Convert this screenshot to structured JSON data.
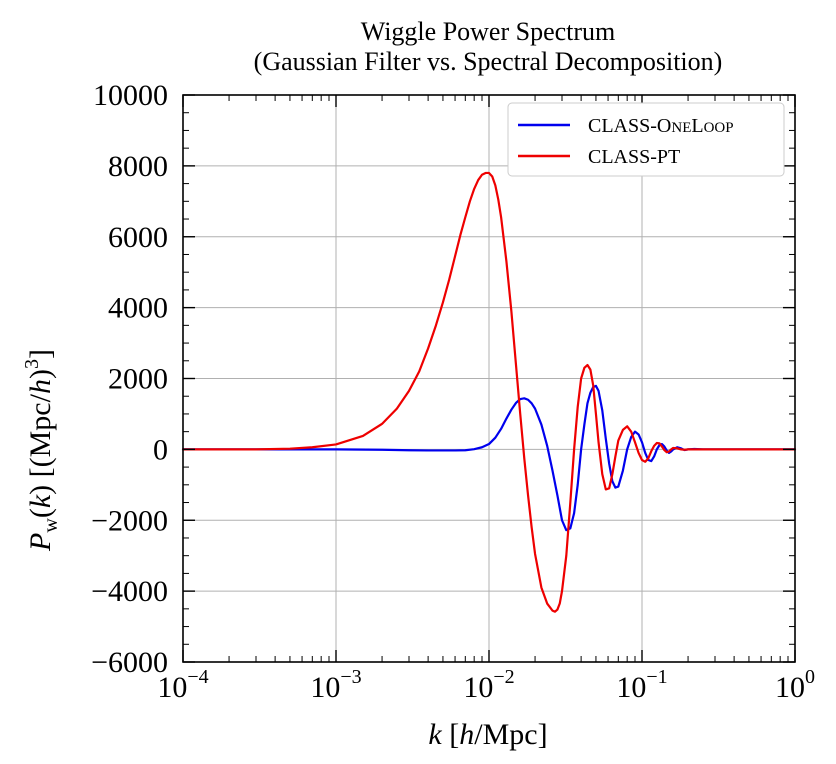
{
  "chart_data": {
    "type": "line",
    "title": [
      "Wiggle Power Spectrum",
      "(Gaussian Filter vs. Spectral Decomposition)"
    ],
    "xlabel": "k [h/Mpc]",
    "ylabel": "P_w(k) [(Mpc/h)^3]",
    "xscale": "log",
    "xlim": [
      0.0001,
      1
    ],
    "ylim": [
      -6000,
      10000
    ],
    "x_tick_labels": [
      {
        "value": 0.0001,
        "base": "10",
        "exp": "−4"
      },
      {
        "value": 0.001,
        "base": "10",
        "exp": "−3"
      },
      {
        "value": 0.01,
        "base": "10",
        "exp": "−2"
      },
      {
        "value": 0.1,
        "base": "10",
        "exp": "−1"
      },
      {
        "value": 1,
        "base": "10",
        "exp": "0"
      }
    ],
    "y_ticks": [
      -6000,
      -4000,
      -2000,
      0,
      2000,
      4000,
      6000,
      8000,
      10000
    ],
    "y_tick_labels": [
      "−6000",
      "−4000",
      "−2000",
      "0",
      "2000",
      "4000",
      "6000",
      "8000",
      "10000"
    ],
    "grid": true,
    "legend_position": "top-right",
    "series": [
      {
        "name": "CLASS-OneLoop",
        "legend_parts": [
          "CLASS-O",
          "NE",
          "L",
          "OOP"
        ],
        "color": "#0000ee",
        "x": [
          0.0001,
          0.001,
          0.002,
          0.003,
          0.004,
          0.005,
          0.006,
          0.007,
          0.008,
          0.009,
          0.01,
          0.011,
          0.012,
          0.013,
          0.014,
          0.015,
          0.016,
          0.017,
          0.018,
          0.019,
          0.02,
          0.022,
          0.024,
          0.026,
          0.028,
          0.03,
          0.032,
          0.034,
          0.036,
          0.038,
          0.04,
          0.042,
          0.044,
          0.046,
          0.048,
          0.05,
          0.052,
          0.055,
          0.058,
          0.061,
          0.064,
          0.067,
          0.07,
          0.075,
          0.08,
          0.085,
          0.09,
          0.095,
          0.1,
          0.105,
          0.11,
          0.115,
          0.12,
          0.125,
          0.13,
          0.135,
          0.14,
          0.145,
          0.15,
          0.155,
          0.16,
          0.17,
          0.18,
          0.19,
          0.2,
          0.22,
          0.25,
          0.3,
          0.4,
          0.6,
          1.0
        ],
        "y": [
          0,
          0,
          -10,
          -25,
          -30,
          -30,
          -30,
          -25,
          5,
          60,
          150,
          330,
          580,
          870,
          1120,
          1310,
          1420,
          1440,
          1400,
          1300,
          1150,
          700,
          100,
          -600,
          -1300,
          -2000,
          -2280,
          -2230,
          -1800,
          -1000,
          0,
          700,
          1300,
          1600,
          1760,
          1790,
          1650,
          1100,
          300,
          -400,
          -900,
          -1080,
          -1050,
          -600,
          0,
          350,
          500,
          420,
          200,
          -100,
          -300,
          -330,
          -200,
          0,
          120,
          150,
          80,
          -30,
          -100,
          -60,
          0,
          60,
          30,
          -20,
          0,
          10,
          0,
          0,
          0,
          0,
          0
        ]
      },
      {
        "name": "CLASS-PT",
        "legend_parts": [
          "CLASS-PT"
        ],
        "color": "#ee0000",
        "x": [
          0.0001,
          0.0003,
          0.0005,
          0.0007,
          0.001,
          0.0015,
          0.002,
          0.0025,
          0.003,
          0.0035,
          0.004,
          0.0045,
          0.005,
          0.0055,
          0.006,
          0.0065,
          0.007,
          0.0075,
          0.008,
          0.0085,
          0.009,
          0.0095,
          0.01,
          0.0105,
          0.011,
          0.0115,
          0.012,
          0.013,
          0.014,
          0.015,
          0.016,
          0.017,
          0.018,
          0.019,
          0.02,
          0.022,
          0.024,
          0.026,
          0.027,
          0.028,
          0.029,
          0.03,
          0.032,
          0.034,
          0.036,
          0.038,
          0.04,
          0.042,
          0.044,
          0.046,
          0.048,
          0.05,
          0.052,
          0.055,
          0.058,
          0.061,
          0.064,
          0.067,
          0.07,
          0.075,
          0.08,
          0.085,
          0.09,
          0.095,
          0.1,
          0.105,
          0.11,
          0.115,
          0.12,
          0.125,
          0.13,
          0.135,
          0.14,
          0.145,
          0.15,
          0.155,
          0.16,
          0.17,
          0.18,
          0.19,
          0.2,
          0.22,
          0.25,
          0.3,
          0.4,
          0.6,
          1.0
        ],
        "y": [
          0,
          0,
          20,
          60,
          140,
          380,
          720,
          1150,
          1650,
          2200,
          2850,
          3500,
          4150,
          4800,
          5450,
          6050,
          6550,
          7000,
          7350,
          7600,
          7750,
          7800,
          7800,
          7700,
          7450,
          7050,
          6550,
          5300,
          3900,
          2400,
          1000,
          -250,
          -1300,
          -2200,
          -2950,
          -3900,
          -4350,
          -4550,
          -4580,
          -4520,
          -4350,
          -4000,
          -3000,
          -1500,
          0,
          1200,
          2000,
          2300,
          2380,
          2250,
          1800,
          1000,
          200,
          -700,
          -1130,
          -1100,
          -700,
          -200,
          250,
          550,
          650,
          500,
          200,
          -100,
          -300,
          -350,
          -250,
          -50,
          100,
          180,
          170,
          80,
          -20,
          -80,
          -60,
          0,
          40,
          30,
          0,
          -10,
          0,
          0,
          0,
          0,
          0,
          0,
          0
        ]
      }
    ]
  }
}
